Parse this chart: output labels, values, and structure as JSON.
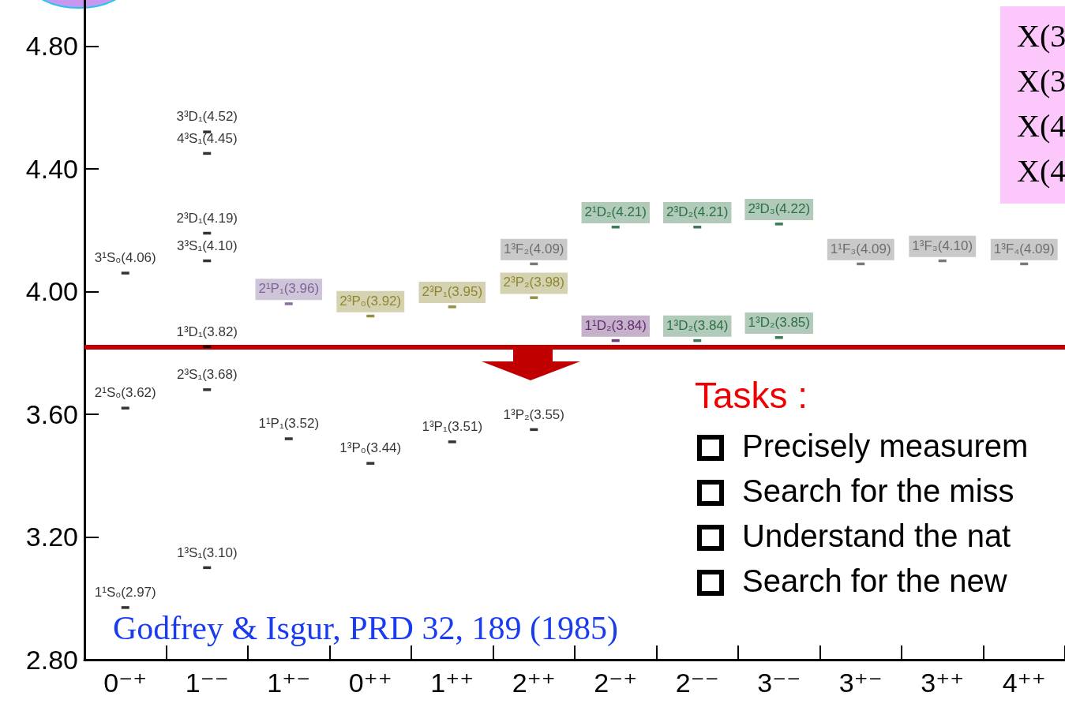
{
  "chart_data": {
    "type": "scatter",
    "categories": [
      "0⁻⁺",
      "1⁻⁻",
      "1⁺⁻",
      "0⁺⁺",
      "1⁺⁺",
      "2⁺⁺",
      "2⁻⁺",
      "2⁻⁻",
      "3⁻⁻",
      "3⁺⁻",
      "3⁺⁺",
      "4⁺⁺"
    ],
    "ylim": [
      2.8,
      4.95
    ],
    "yticks": [
      {
        "value": 2.8,
        "label": "2.80"
      },
      {
        "value": 3.2,
        "label": "3.20"
      },
      {
        "value": 3.6,
        "label": "3.60"
      },
      {
        "value": 4.0,
        "label": "4.00"
      },
      {
        "value": 4.4,
        "label": "4.40"
      },
      {
        "value": 4.8,
        "label": "4.80"
      }
    ],
    "grid": false,
    "series": [
      {
        "x": [
          "0⁻⁺",
          "0⁻⁺",
          "0⁻⁺",
          "1⁻⁻",
          "1⁻⁻",
          "1⁻⁻",
          "1⁻⁻",
          "1⁻⁻",
          "1⁻⁻",
          "1⁻⁻",
          "1⁺⁻",
          "0⁺⁺",
          "1⁺⁺",
          "2⁺⁺"
        ],
        "values": [
          2.97,
          3.62,
          4.06,
          3.1,
          3.68,
          3.82,
          4.1,
          4.19,
          4.45,
          4.52,
          3.52,
          3.44,
          3.51,
          3.55
        ],
        "value_labels": [
          "1¹S₀(2.97)",
          "2¹S₀(3.62)",
          "3¹S₀(4.06)",
          "1³S₁(3.10)",
          "2³S₁(3.68)",
          "1³D₁(3.82)",
          "3³S₁(4.10)",
          "2³D₁(4.19)",
          "4³S₁(4.45)",
          "3³D₁(4.52)",
          "1¹P₁(3.52)",
          "1³P₀(3.44)",
          "1³P₁(3.51)",
          "1³P₂(3.55)"
        ]
      },
      {
        "color": "#6a4a8a",
        "x": [
          "1⁺⁻"
        ],
        "values": [
          3.96
        ],
        "value_labels": [
          "2¹P₁(3.96)"
        ]
      },
      {
        "color": "#7a7410",
        "x": [
          "0⁺⁺",
          "1⁺⁺",
          "2⁺⁺"
        ],
        "values": [
          3.92,
          3.95,
          3.98
        ],
        "value_labels": [
          "2³P₀(3.92)",
          "2³P₁(3.95)",
          "2³P₂(3.98)"
        ]
      },
      {
        "color": "#585858",
        "x": [
          "2⁺⁺",
          "3⁺⁻",
          "3⁺⁺",
          "4⁺⁺"
        ],
        "values": [
          4.09,
          4.09,
          4.1,
          4.09
        ],
        "value_labels": [
          "1³F₂(4.09)",
          "1¹F₃(4.09)",
          "1³F₃(4.10)",
          "1³F₄(4.09)"
        ]
      },
      {
        "color": "#4a0a5a",
        "x": [
          "2⁻⁺"
        ],
        "values": [
          3.84
        ],
        "value_labels": [
          "1¹D₂(3.84)"
        ]
      },
      {
        "color": "#0a5a28",
        "x": [
          "2⁻⁺",
          "2⁻⁻",
          "3⁻⁻",
          "2⁻⁻",
          "3⁻⁻"
        ],
        "values": [
          4.21,
          4.21,
          4.22,
          3.84,
          3.85
        ],
        "value_labels": [
          "2¹D₂(4.21)",
          "2³D₂(4.21)",
          "2³D₃(4.22)",
          "1³D₂(3.84)",
          "1³D₂(3.85)"
        ]
      }
    ],
    "ref_lines": [
      {
        "axis": "y",
        "value": 3.82,
        "color": "#c00000"
      }
    ],
    "annotations": [
      "Godfrey & Isgur, PRD 32, 189 (1985)",
      "Tasks :",
      "Precisely measurem",
      "Search for the miss",
      "Understand the nat",
      "Search for the new",
      "X(3",
      "X(3",
      "X(4",
      "X(4"
    ]
  }
}
